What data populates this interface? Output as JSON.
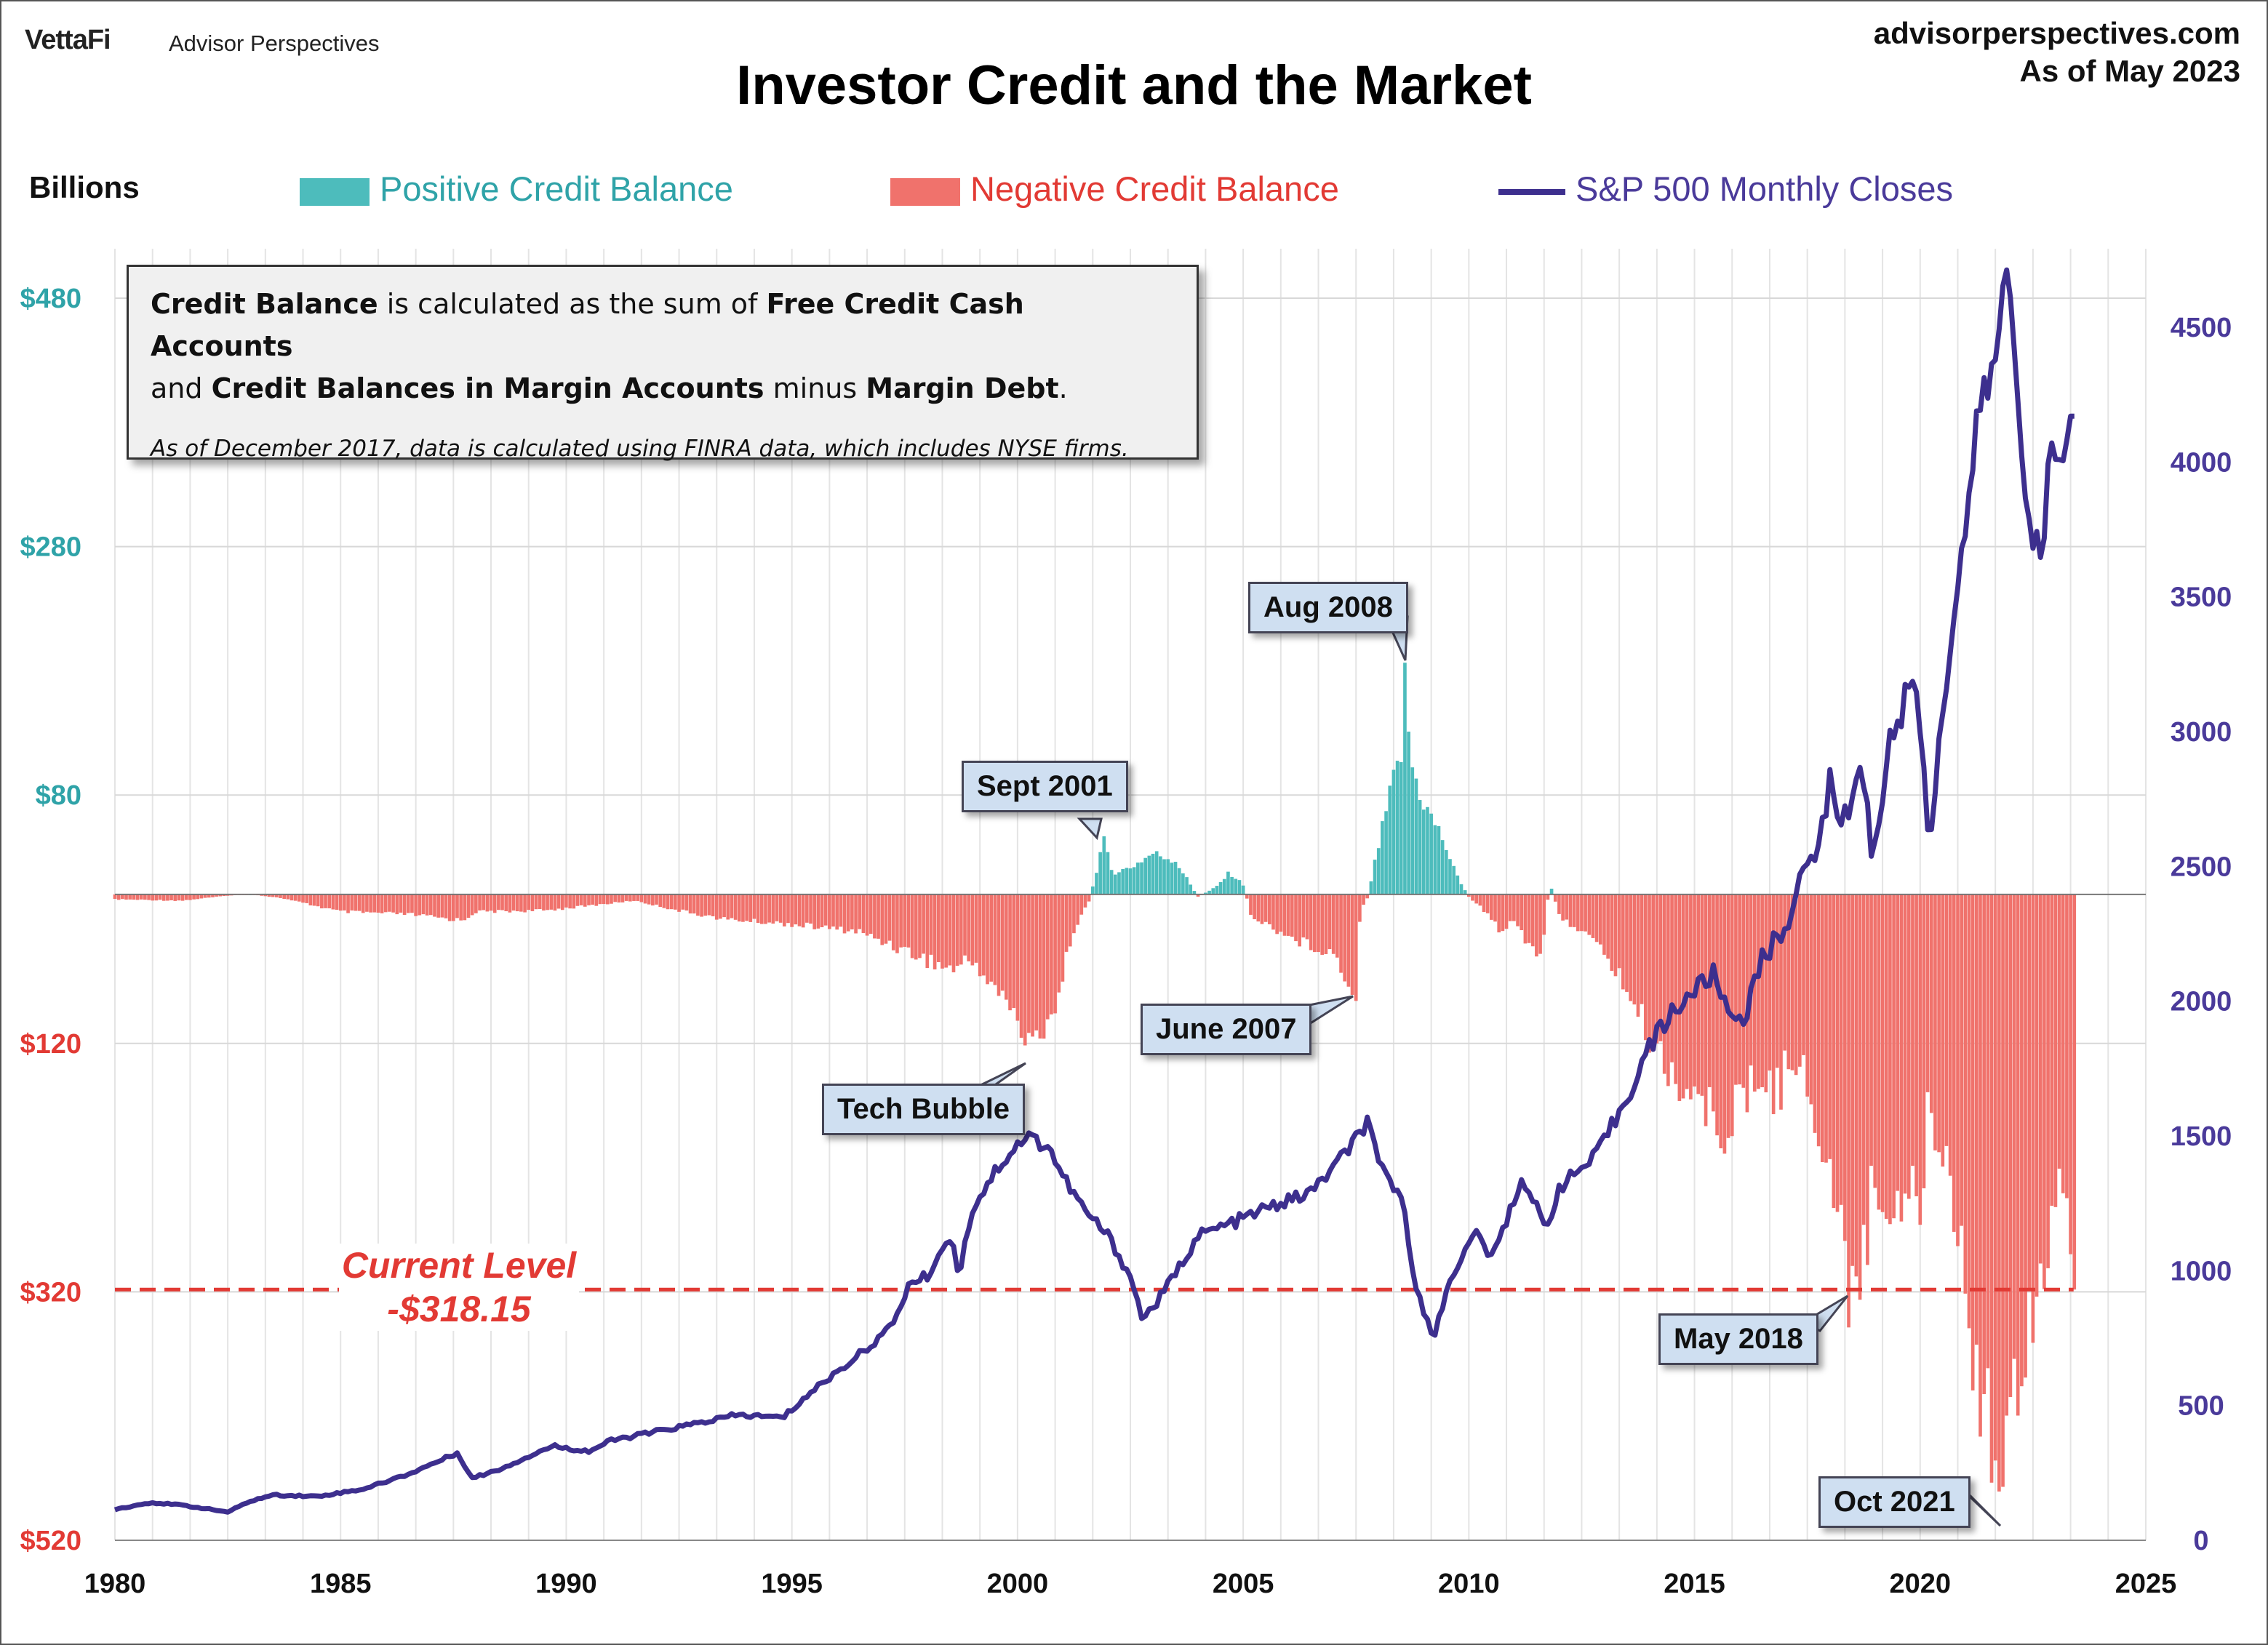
{
  "header": {
    "brand": "VettaFi",
    "brand_sub": "Advisor Perspectives",
    "site": "advisorperspectives.com",
    "as_of": "As of May 2023",
    "title": "Investor Credit and the Market"
  },
  "legend": {
    "units": "Billions",
    "positive": "Positive Credit Balance",
    "negative": "Negative Credit Balance",
    "sp500": "S&P 500 Monthly Closes"
  },
  "colors": {
    "positive": "#4dbcbc",
    "negative": "#f0726c",
    "sp500": "#3d2f8e",
    "left_axis_positive": "#2fa3a8",
    "left_axis_negative": "#e23a34",
    "right_axis": "#4a3a9a",
    "current_line": "#e23a34"
  },
  "infobox": {
    "b1": "Credit Balance",
    "t1": " is calculated as the sum of ",
    "b2": "Free Credit Cash Accounts",
    "t2": "and ",
    "b3": "Credit Balances in Margin Accounts",
    "t3": " minus ",
    "b4": "Margin Debt",
    "t4": ".",
    "note": "As of December 2017, data is calculated using FINRA data, which includes NYSE firms."
  },
  "annotations": {
    "aug2008": "Aug 2008",
    "sept2001": "Sept 2001",
    "june2007": "June 2007",
    "tech_bubble": "Tech Bubble",
    "may2018": "May 2018",
    "oct2021": "Oct 2021",
    "current_level_label": "Current Level",
    "current_level_value": "-$318.15"
  },
  "chart_data": {
    "type": "bar",
    "title": "Investor Credit and the Market",
    "xlabel": "",
    "ylabel": "Billions",
    "x_range": [
      1980,
      2025
    ],
    "x_ticks": [
      "1980",
      "1985",
      "1990",
      "1995",
      "2000",
      "2005",
      "2010",
      "2015",
      "2020",
      "2025"
    ],
    "y_left_range": [
      -520,
      520
    ],
    "y_left_ticks": [
      {
        "value": 480,
        "label": "$480"
      },
      {
        "value": 280,
        "label": "$280"
      },
      {
        "value": 80,
        "label": "$80"
      },
      {
        "value": -120,
        "label": "$120"
      },
      {
        "value": -320,
        "label": "$320"
      },
      {
        "value": -520,
        "label": "$520"
      }
    ],
    "y_right_range": [
      0,
      5000
    ],
    "y_right_ticks": [
      "0",
      "500",
      "1000",
      "1500",
      "2000",
      "2500",
      "3000",
      "3500",
      "4000",
      "4500"
    ],
    "current_level": -318.15,
    "series": [
      {
        "name": "Credit Balance",
        "type": "bar",
        "keypoints": [
          [
            1980.0,
            -4
          ],
          [
            1981.5,
            -5
          ],
          [
            1982.5,
            -1
          ],
          [
            1983.0,
            0
          ],
          [
            1983.7,
            -3
          ],
          [
            1985.0,
            -14
          ],
          [
            1986.5,
            -16
          ],
          [
            1987.7,
            -21
          ],
          [
            1988.0,
            -14
          ],
          [
            1989.5,
            -13
          ],
          [
            1990.8,
            -8
          ],
          [
            1991.5,
            -5
          ],
          [
            1992.5,
            -13
          ],
          [
            1993.5,
            -20
          ],
          [
            1995.0,
            -24
          ],
          [
            1996.5,
            -30
          ],
          [
            1997.5,
            -46
          ],
          [
            1998.5,
            -62
          ],
          [
            1999.0,
            -54
          ],
          [
            1999.5,
            -78
          ],
          [
            2000.0,
            -100
          ],
          [
            2000.2,
            -130
          ],
          [
            2000.6,
            -106
          ],
          [
            2000.9,
            -88
          ],
          [
            2001.2,
            -32
          ],
          [
            2001.6,
            -5
          ],
          [
            2001.7,
            12
          ],
          [
            2001.9,
            45
          ],
          [
            2002.1,
            18
          ],
          [
            2002.5,
            22
          ],
          [
            2003.0,
            34
          ],
          [
            2003.5,
            28
          ],
          [
            2003.8,
            10
          ],
          [
            2004.0,
            -2
          ],
          [
            2004.4,
            6
          ],
          [
            2004.7,
            18
          ],
          [
            2005.0,
            8
          ],
          [
            2005.2,
            -20
          ],
          [
            2005.6,
            -26
          ],
          [
            2006.0,
            -35
          ],
          [
            2006.5,
            -42
          ],
          [
            2007.0,
            -48
          ],
          [
            2007.3,
            -72
          ],
          [
            2007.5,
            -80
          ],
          [
            2007.6,
            -12
          ],
          [
            2007.75,
            -3
          ],
          [
            2008.0,
            40
          ],
          [
            2008.3,
            90
          ],
          [
            2008.5,
            115
          ],
          [
            2008.6,
            188
          ],
          [
            2008.7,
            110
          ],
          [
            2009.0,
            75
          ],
          [
            2009.4,
            48
          ],
          [
            2009.7,
            18
          ],
          [
            2010.0,
            -2
          ],
          [
            2010.3,
            -12
          ],
          [
            2010.7,
            -30
          ],
          [
            2011.0,
            -20
          ],
          [
            2011.3,
            -40
          ],
          [
            2011.6,
            -50
          ],
          [
            2011.8,
            10
          ],
          [
            2012.0,
            -18
          ],
          [
            2012.5,
            -30
          ],
          [
            2013.0,
            -48
          ],
          [
            2013.5,
            -80
          ],
          [
            2014.0,
            -120
          ],
          [
            2014.5,
            -150
          ],
          [
            2015.0,
            -168
          ],
          [
            2015.5,
            -196
          ],
          [
            2016.0,
            -180
          ],
          [
            2016.5,
            -152
          ],
          [
            2016.9,
            -172
          ],
          [
            2017.0,
            -122
          ],
          [
            2017.5,
            -160
          ],
          [
            2018.0,
            -240
          ],
          [
            2018.4,
            -322
          ],
          [
            2018.7,
            -300
          ],
          [
            2019.0,
            -252
          ],
          [
            2019.5,
            -250
          ],
          [
            2019.8,
            -242
          ],
          [
            2020.0,
            -262
          ],
          [
            2020.2,
            -178
          ],
          [
            2020.5,
            -210
          ],
          [
            2020.8,
            -260
          ],
          [
            2021.0,
            -335
          ],
          [
            2021.3,
            -395
          ],
          [
            2021.6,
            -435
          ],
          [
            2021.8,
            -508
          ],
          [
            2022.0,
            -450
          ],
          [
            2022.3,
            -360
          ],
          [
            2022.6,
            -322
          ],
          [
            2022.9,
            -270
          ],
          [
            2023.1,
            -258
          ],
          [
            2023.3,
            -300
          ],
          [
            2023.4,
            -318
          ]
        ]
      },
      {
        "name": "S&P 500 Monthly Closes",
        "type": "line",
        "axis": "right",
        "keypoints": [
          [
            1980.0,
            115
          ],
          [
            1980.8,
            140
          ],
          [
            1981.5,
            130
          ],
          [
            1982.5,
            105
          ],
          [
            1983.0,
            145
          ],
          [
            1983.5,
            168
          ],
          [
            1984.5,
            163
          ],
          [
            1985.5,
            190
          ],
          [
            1986.5,
            245
          ],
          [
            1987.6,
            325
          ],
          [
            1987.9,
            230
          ],
          [
            1988.5,
            262
          ],
          [
            1989.7,
            350
          ],
          [
            1990.5,
            330
          ],
          [
            1991.0,
            370
          ],
          [
            1992.5,
            420
          ],
          [
            1993.8,
            465
          ],
          [
            1994.8,
            455
          ],
          [
            1995.5,
            560
          ],
          [
            1996.5,
            690
          ],
          [
            1997.2,
            790
          ],
          [
            1997.6,
            950
          ],
          [
            1998.0,
            980
          ],
          [
            1998.5,
            1130
          ],
          [
            1998.7,
            990
          ],
          [
            1999.0,
            1230
          ],
          [
            1999.5,
            1370
          ],
          [
            1999.9,
            1450
          ],
          [
            2000.2,
            1500
          ],
          [
            2000.7,
            1460
          ],
          [
            2001.0,
            1350
          ],
          [
            2001.5,
            1220
          ],
          [
            2002.0,
            1130
          ],
          [
            2002.5,
            980
          ],
          [
            2002.75,
            830
          ],
          [
            2003.0,
            860
          ],
          [
            2003.5,
            990
          ],
          [
            2004.0,
            1130
          ],
          [
            2004.8,
            1180
          ],
          [
            2005.5,
            1230
          ],
          [
            2006.5,
            1290
          ],
          [
            2007.2,
            1420
          ],
          [
            2007.75,
            1550
          ],
          [
            2008.0,
            1390
          ],
          [
            2008.5,
            1280
          ],
          [
            2008.8,
            970
          ],
          [
            2009.2,
            740
          ],
          [
            2009.6,
            980
          ],
          [
            2010.2,
            1150
          ],
          [
            2010.5,
            1040
          ],
          [
            2011.2,
            1350
          ],
          [
            2011.7,
            1150
          ],
          [
            2012.0,
            1310
          ],
          [
            2012.8,
            1420
          ],
          [
            2013.5,
            1640
          ],
          [
            2014.0,
            1830
          ],
          [
            2014.5,
            1960
          ],
          [
            2015.4,
            2100
          ],
          [
            2015.8,
            1950
          ],
          [
            2016.1,
            1940
          ],
          [
            2016.5,
            2150
          ],
          [
            2017.0,
            2280
          ],
          [
            2017.9,
            2670
          ],
          [
            2018.0,
            2820
          ],
          [
            2018.3,
            2650
          ],
          [
            2018.7,
            2910
          ],
          [
            2018.95,
            2510
          ],
          [
            2019.3,
            2940
          ],
          [
            2019.9,
            3230
          ],
          [
            2020.2,
            2580
          ],
          [
            2020.5,
            3100
          ],
          [
            2020.9,
            3620
          ],
          [
            2021.3,
            4180
          ],
          [
            2021.7,
            4400
          ],
          [
            2021.95,
            4766
          ],
          [
            2022.2,
            4130
          ],
          [
            2022.45,
            3780
          ],
          [
            2022.7,
            3590
          ],
          [
            2022.9,
            4080
          ],
          [
            2023.1,
            3970
          ],
          [
            2023.3,
            4170
          ]
        ]
      }
    ]
  }
}
